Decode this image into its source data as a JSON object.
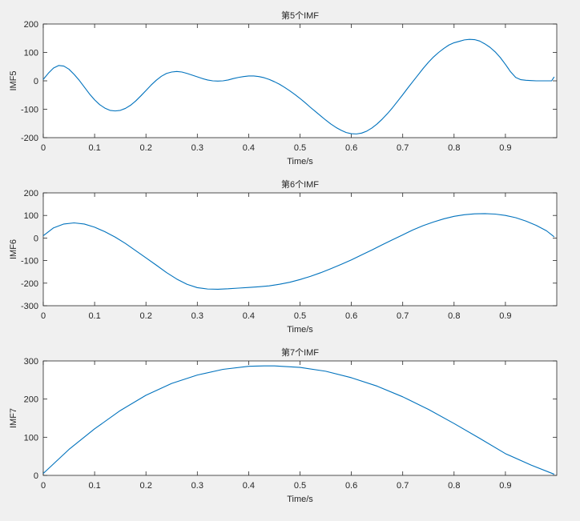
{
  "colors": {
    "figure_background": "#f0f0f0",
    "axes_background": "#ffffff",
    "axis_line": "#262626",
    "series": "#0072bd"
  },
  "chart_data": [
    {
      "type": "line",
      "title": "第5个IMF",
      "xlabel": "Time/s",
      "ylabel": "IMF5",
      "xlim": [
        0,
        1
      ],
      "ylim": [
        -200,
        200
      ],
      "xticks": [
        0,
        0.1,
        0.2,
        0.3,
        0.4,
        0.5,
        0.6,
        0.7,
        0.8,
        0.9
      ],
      "xtick_labels": [
        "0",
        "0.1",
        "0.2",
        "0.3",
        "0.4",
        "0.5",
        "0.6",
        "0.7",
        "0.8",
        "0.9"
      ],
      "yticks": [
        -200,
        -100,
        0,
        100,
        200
      ],
      "ytick_labels": [
        "-200",
        "-100",
        "0",
        "100",
        "200"
      ],
      "grid": false,
      "series": [
        {
          "x": [
            0,
            0.01,
            0.02,
            0.03,
            0.04,
            0.05,
            0.06,
            0.07,
            0.08,
            0.09,
            0.1,
            0.11,
            0.12,
            0.13,
            0.14,
            0.15,
            0.16,
            0.17,
            0.18,
            0.19,
            0.2,
            0.21,
            0.22,
            0.23,
            0.24,
            0.25,
            0.26,
            0.27,
            0.28,
            0.29,
            0.3,
            0.31,
            0.32,
            0.33,
            0.34,
            0.35,
            0.36,
            0.37,
            0.38,
            0.39,
            0.4,
            0.41,
            0.42,
            0.43,
            0.44,
            0.45,
            0.46,
            0.47,
            0.48,
            0.49,
            0.5,
            0.51,
            0.52,
            0.53,
            0.54,
            0.55,
            0.56,
            0.57,
            0.58,
            0.59,
            0.6,
            0.61,
            0.62,
            0.63,
            0.64,
            0.65,
            0.66,
            0.67,
            0.68,
            0.69,
            0.7,
            0.71,
            0.72,
            0.73,
            0.74,
            0.75,
            0.76,
            0.77,
            0.78,
            0.79,
            0.8,
            0.81,
            0.82,
            0.83,
            0.84,
            0.85,
            0.86,
            0.87,
            0.88,
            0.89,
            0.9,
            0.91,
            0.92,
            0.93,
            0.94,
            0.95,
            0.96,
            0.97,
            0.98,
            0.99,
            0.995
          ],
          "y": [
            5,
            27,
            45,
            54,
            52,
            41,
            23,
            2,
            -22,
            -46,
            -67,
            -84,
            -96,
            -104,
            -106,
            -104,
            -97,
            -86,
            -71,
            -53,
            -34,
            -15,
            2,
            16,
            26,
            31,
            33,
            31,
            26,
            20,
            14,
            8,
            3,
            0,
            -1,
            0,
            3,
            8,
            12,
            15,
            17,
            17,
            15,
            11,
            5,
            -3,
            -12,
            -23,
            -35,
            -48,
            -62,
            -77,
            -93,
            -108,
            -123,
            -138,
            -152,
            -164,
            -174,
            -182,
            -186,
            -187,
            -184,
            -177,
            -166,
            -152,
            -135,
            -116,
            -95,
            -72,
            -49,
            -25,
            -2,
            21,
            44,
            65,
            84,
            100,
            114,
            126,
            134,
            139,
            144,
            146,
            145,
            140,
            130,
            118,
            102,
            82,
            58,
            32,
            12,
            4,
            2,
            1,
            0,
            0,
            0,
            0,
            14
          ]
        }
      ]
    },
    {
      "type": "line",
      "title": "第6个IMF",
      "xlabel": "Time/s",
      "ylabel": "IMF6",
      "xlim": [
        0,
        1
      ],
      "ylim": [
        -300,
        200
      ],
      "xticks": [
        0,
        0.1,
        0.2,
        0.3,
        0.4,
        0.5,
        0.6,
        0.7,
        0.8,
        0.9
      ],
      "xtick_labels": [
        "0",
        "0.1",
        "0.2",
        "0.3",
        "0.4",
        "0.5",
        "0.6",
        "0.7",
        "0.8",
        "0.9"
      ],
      "yticks": [
        -300,
        -200,
        -100,
        0,
        100,
        200
      ],
      "ytick_labels": [
        "-300",
        "-200",
        "-100",
        "0",
        "100",
        "200"
      ],
      "grid": false,
      "series": [
        {
          "x": [
            0,
            0.02,
            0.04,
            0.06,
            0.08,
            0.1,
            0.12,
            0.14,
            0.16,
            0.18,
            0.2,
            0.22,
            0.24,
            0.26,
            0.28,
            0.3,
            0.32,
            0.34,
            0.36,
            0.38,
            0.4,
            0.42,
            0.44,
            0.46,
            0.48,
            0.5,
            0.52,
            0.54,
            0.56,
            0.58,
            0.6,
            0.62,
            0.64,
            0.66,
            0.68,
            0.7,
            0.72,
            0.74,
            0.76,
            0.78,
            0.8,
            0.82,
            0.84,
            0.86,
            0.88,
            0.9,
            0.92,
            0.94,
            0.96,
            0.98,
            0.995
          ],
          "y": [
            10,
            45,
            62,
            67,
            62,
            48,
            28,
            4,
            -24,
            -56,
            -88,
            -120,
            -153,
            -182,
            -205,
            -220,
            -226,
            -227,
            -225,
            -222,
            -219,
            -216,
            -212,
            -205,
            -196,
            -184,
            -170,
            -154,
            -136,
            -117,
            -97,
            -75,
            -53,
            -30,
            -8,
            14,
            36,
            55,
            71,
            85,
            96,
            103,
            107,
            108,
            106,
            100,
            90,
            75,
            56,
            32,
            5
          ]
        }
      ]
    },
    {
      "type": "line",
      "title": "第7个IMF",
      "xlabel": "Time/s",
      "ylabel": "IMF7",
      "xlim": [
        0,
        1
      ],
      "ylim": [
        0,
        300
      ],
      "xticks": [
        0,
        0.1,
        0.2,
        0.3,
        0.4,
        0.5,
        0.6,
        0.7,
        0.8,
        0.9
      ],
      "xtick_labels": [
        "0",
        "0.1",
        "0.2",
        "0.3",
        "0.4",
        "0.5",
        "0.6",
        "0.7",
        "0.8",
        "0.9"
      ],
      "yticks": [
        0,
        100,
        200,
        300
      ],
      "ytick_labels": [
        "0",
        "100",
        "200",
        "300"
      ],
      "grid": false,
      "series": [
        {
          "x": [
            0,
            0.05,
            0.1,
            0.15,
            0.2,
            0.25,
            0.3,
            0.35,
            0.4,
            0.43,
            0.45,
            0.5,
            0.55,
            0.6,
            0.65,
            0.7,
            0.75,
            0.8,
            0.85,
            0.9,
            0.95,
            0.995
          ],
          "y": [
            5,
            68,
            122,
            170,
            210,
            241,
            263,
            278,
            286,
            287,
            287,
            283,
            273,
            256,
            234,
            206,
            173,
            136,
            97,
            57,
            27,
            3
          ]
        }
      ]
    }
  ]
}
